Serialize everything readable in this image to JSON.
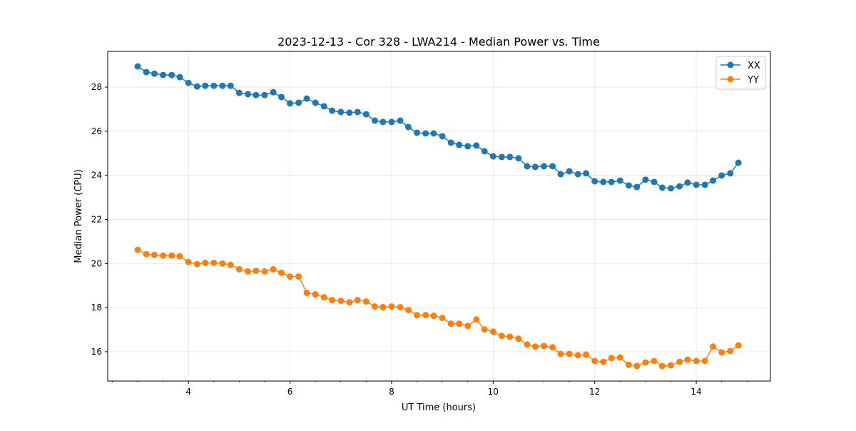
{
  "chart_data": {
    "type": "line",
    "title": "2023-12-13 - Cor 328 - LWA214 - Median Power vs. Time",
    "xlabel": "UT Time (hours)",
    "ylabel": "Median Power (CPU)",
    "xlim": [
      2.41,
      15.46
    ],
    "ylim": [
      14.67,
      29.62
    ],
    "xticks": [
      4,
      6,
      8,
      10,
      12,
      14
    ],
    "xtick_labels": [
      "4",
      "6",
      "8",
      "10",
      "12",
      "14"
    ],
    "yticks": [
      16,
      18,
      20,
      22,
      24,
      26,
      28
    ],
    "ytick_labels": [
      "16",
      "18",
      "20",
      "22",
      "24",
      "26",
      "28"
    ],
    "grid": true,
    "legend_position": "top-right",
    "x": [
      3.0,
      3.17,
      3.33,
      3.5,
      3.67,
      3.83,
      4.0,
      4.17,
      4.33,
      4.5,
      4.67,
      4.83,
      5.0,
      5.17,
      5.33,
      5.5,
      5.67,
      5.83,
      6.0,
      6.17,
      6.33,
      6.5,
      6.67,
      6.83,
      7.0,
      7.17,
      7.33,
      7.5,
      7.67,
      7.83,
      8.0,
      8.17,
      8.33,
      8.5,
      8.67,
      8.83,
      9.0,
      9.17,
      9.33,
      9.5,
      9.67,
      9.83,
      10.0,
      10.17,
      10.33,
      10.5,
      10.67,
      10.83,
      11.0,
      11.17,
      11.33,
      11.5,
      11.67,
      11.83,
      12.0,
      12.17,
      12.33,
      12.5,
      12.67,
      12.83,
      13.0,
      13.17,
      13.33,
      13.5,
      13.67,
      13.83,
      14.0,
      14.17,
      14.33,
      14.5,
      14.67,
      14.83
    ],
    "series": [
      {
        "name": "XX",
        "color": "#1f77b4",
        "values": [
          28.94,
          28.68,
          28.61,
          28.55,
          28.55,
          28.45,
          28.19,
          28.03,
          28.06,
          28.06,
          28.06,
          28.06,
          27.74,
          27.68,
          27.64,
          27.64,
          27.77,
          27.55,
          27.26,
          27.29,
          27.48,
          27.29,
          27.13,
          26.93,
          26.87,
          26.84,
          26.87,
          26.77,
          26.48,
          26.42,
          26.42,
          26.48,
          26.19,
          25.93,
          25.9,
          25.9,
          25.77,
          25.48,
          25.38,
          25.32,
          25.35,
          25.09,
          24.86,
          24.83,
          24.83,
          24.77,
          24.41,
          24.38,
          24.41,
          24.41,
          24.05,
          24.18,
          24.05,
          24.09,
          23.73,
          23.7,
          23.7,
          23.76,
          23.54,
          23.47,
          23.8,
          23.7,
          23.44,
          23.41,
          23.5,
          23.67,
          23.57,
          23.57,
          23.76,
          23.99,
          24.09,
          24.57
        ]
      },
      {
        "name": "YY",
        "color": "#ff7f0e",
        "values": [
          20.62,
          20.42,
          20.39,
          20.36,
          20.36,
          20.33,
          20.07,
          19.97,
          20.03,
          20.03,
          20.0,
          19.94,
          19.74,
          19.64,
          19.67,
          19.64,
          19.74,
          19.58,
          19.41,
          19.41,
          18.67,
          18.6,
          18.47,
          18.34,
          18.31,
          18.24,
          18.34,
          18.28,
          18.05,
          18.02,
          18.05,
          18.02,
          17.89,
          17.66,
          17.66,
          17.63,
          17.53,
          17.27,
          17.27,
          17.17,
          17.46,
          17.01,
          16.91,
          16.72,
          16.68,
          16.59,
          16.33,
          16.23,
          16.26,
          16.2,
          15.9,
          15.9,
          15.84,
          15.87,
          15.58,
          15.54,
          15.71,
          15.74,
          15.41,
          15.35,
          15.51,
          15.58,
          15.35,
          15.38,
          15.54,
          15.64,
          15.58,
          15.58,
          16.23,
          15.97,
          16.03,
          16.29
        ]
      }
    ]
  }
}
